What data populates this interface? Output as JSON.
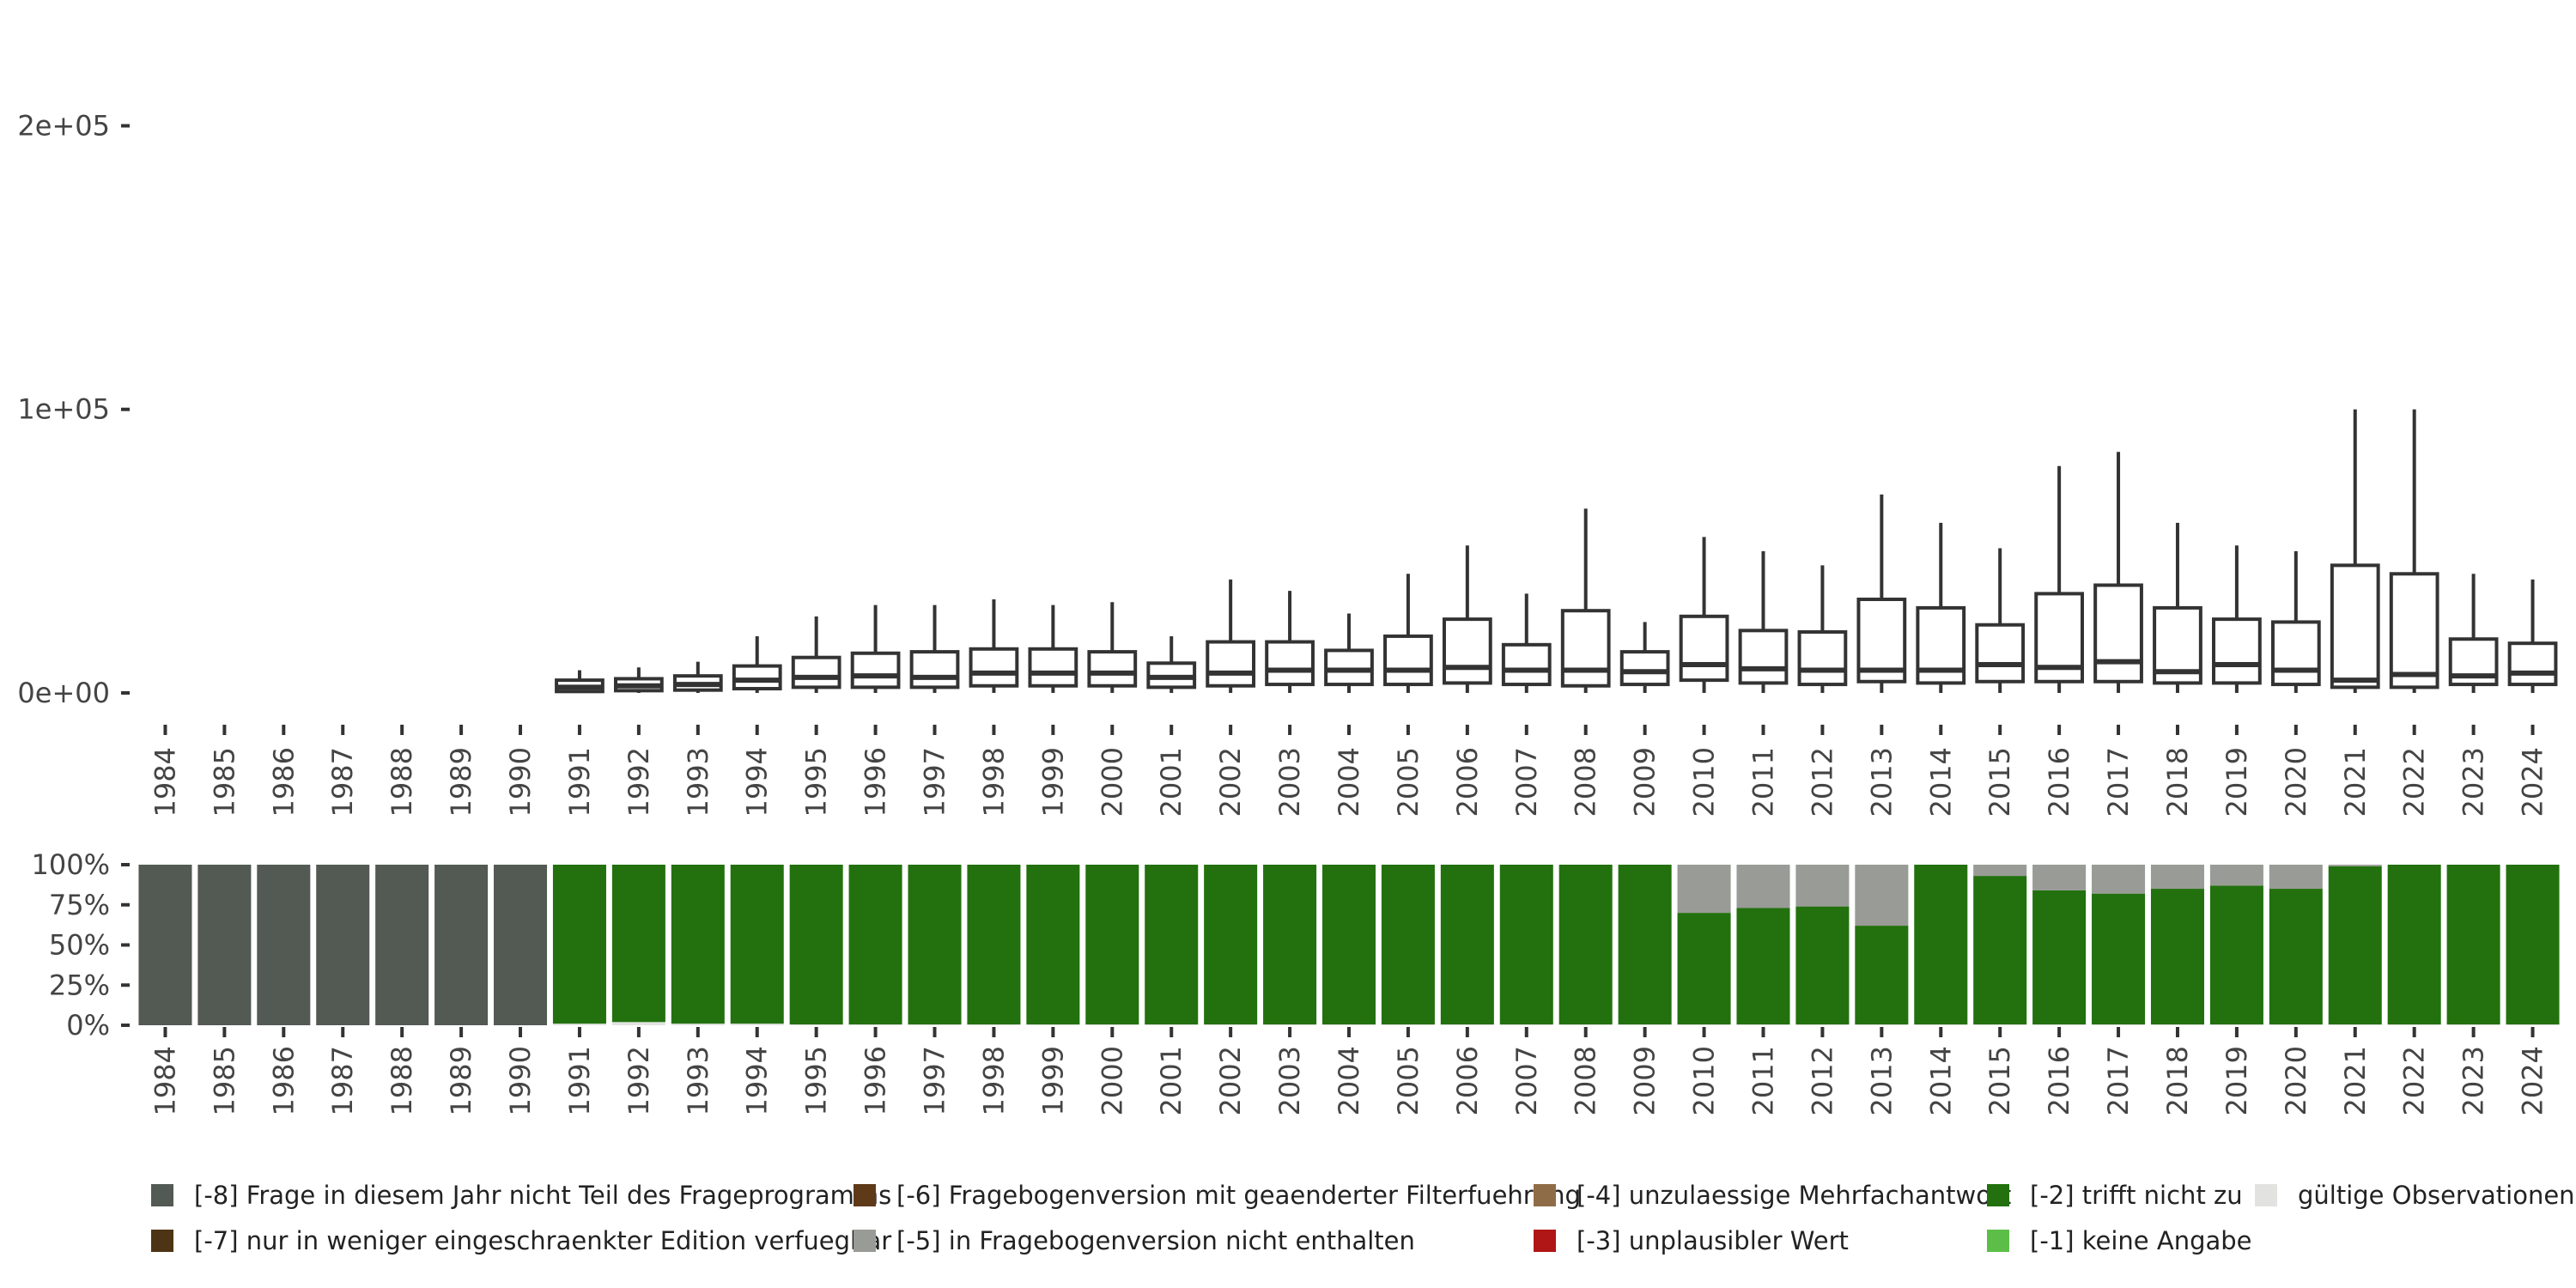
{
  "chart_data": [
    {
      "type": "boxplot",
      "title": "",
      "xlabel": "",
      "ylabel": "",
      "ylim": [
        -10000,
        205000
      ],
      "y_ticks": [
        {
          "value": 0,
          "label": "0e+00"
        },
        {
          "value": 100000,
          "label": "1e+05"
        },
        {
          "value": 200000,
          "label": "2e+05"
        }
      ],
      "categories": [
        "1984",
        "1985",
        "1986",
        "1987",
        "1988",
        "1989",
        "1990",
        "1991",
        "1992",
        "1993",
        "1994",
        "1995",
        "1996",
        "1997",
        "1998",
        "1999",
        "2000",
        "2001",
        "2002",
        "2003",
        "2004",
        "2005",
        "2006",
        "2007",
        "2008",
        "2009",
        "2010",
        "2011",
        "2012",
        "2013",
        "2014",
        "2015",
        "2016",
        "2017",
        "2018",
        "2019",
        "2020",
        "2021",
        "2022",
        "2023",
        "2024"
      ],
      "boxes": [
        null,
        null,
        null,
        null,
        null,
        null,
        null,
        {
          "min": 0,
          "q1": 500,
          "median": 2000,
          "q3": 4500,
          "max": 8000
        },
        {
          "min": 0,
          "q1": 800,
          "median": 2500,
          "q3": 5000,
          "max": 9000
        },
        {
          "min": 0,
          "q1": 1000,
          "median": 3000,
          "q3": 6000,
          "max": 11000
        },
        {
          "min": 0,
          "q1": 1500,
          "median": 4500,
          "q3": 9500,
          "max": 20000
        },
        {
          "min": 0,
          "q1": 2000,
          "median": 5500,
          "q3": 12500,
          "max": 27000
        },
        {
          "min": 0,
          "q1": 2000,
          "median": 6000,
          "q3": 14000,
          "max": 31000
        },
        {
          "min": 0,
          "q1": 2000,
          "median": 5500,
          "q3": 14500,
          "max": 31000
        },
        {
          "min": 0,
          "q1": 2500,
          "median": 7000,
          "q3": 15500,
          "max": 33000
        },
        {
          "min": 0,
          "q1": 2500,
          "median": 7000,
          "q3": 15500,
          "max": 31000
        },
        {
          "min": 0,
          "q1": 2500,
          "median": 7000,
          "q3": 14500,
          "max": 32000
        },
        {
          "min": 0,
          "q1": 2000,
          "median": 5500,
          "q3": 10500,
          "max": 20000
        },
        {
          "min": 0,
          "q1": 2500,
          "median": 7000,
          "q3": 18000,
          "max": 40000
        },
        {
          "min": 0,
          "q1": 3000,
          "median": 8000,
          "q3": 18000,
          "max": 36000
        },
        {
          "min": 0,
          "q1": 3000,
          "median": 8000,
          "q3": 15000,
          "max": 28000
        },
        {
          "min": 0,
          "q1": 3000,
          "median": 8000,
          "q3": 20000,
          "max": 42000
        },
        {
          "min": 0,
          "q1": 3500,
          "median": 9000,
          "q3": 26000,
          "max": 52000
        },
        {
          "min": 0,
          "q1": 3000,
          "median": 8000,
          "q3": 17000,
          "max": 35000
        },
        {
          "min": 0,
          "q1": 2500,
          "median": 8000,
          "q3": 29000,
          "max": 65000
        },
        {
          "min": 0,
          "q1": 3000,
          "median": 7500,
          "q3": 14500,
          "max": 25000
        },
        {
          "min": 0,
          "q1": 4500,
          "median": 10000,
          "q3": 27000,
          "max": 55000
        },
        {
          "min": 0,
          "q1": 3500,
          "median": 8500,
          "q3": 22000,
          "max": 50000
        },
        {
          "min": 0,
          "q1": 3000,
          "median": 8000,
          "q3": 21500,
          "max": 45000
        },
        {
          "min": 0,
          "q1": 4000,
          "median": 8000,
          "q3": 33000,
          "max": 70000
        },
        {
          "min": 0,
          "q1": 3500,
          "median": 8000,
          "q3": 30000,
          "max": 60000
        },
        {
          "min": 0,
          "q1": 4000,
          "median": 10000,
          "q3": 24000,
          "max": 51000
        },
        {
          "min": 0,
          "q1": 4000,
          "median": 9000,
          "q3": 35000,
          "max": 80000
        },
        {
          "min": 0,
          "q1": 4000,
          "median": 11000,
          "q3": 38000,
          "max": 85000
        },
        {
          "min": 0,
          "q1": 3500,
          "median": 7500,
          "q3": 30000,
          "max": 60000
        },
        {
          "min": 0,
          "q1": 3500,
          "median": 10000,
          "q3": 26000,
          "max": 52000
        },
        {
          "min": 0,
          "q1": 3000,
          "median": 8000,
          "q3": 25000,
          "max": 50000
        },
        {
          "min": 0,
          "q1": 2000,
          "median": 4500,
          "q3": 45000,
          "max": 100000
        },
        {
          "min": 0,
          "q1": 2000,
          "median": 6500,
          "q3": 42000,
          "max": 100000
        },
        {
          "min": 0,
          "q1": 3000,
          "median": 6000,
          "q3": 19000,
          "max": 42000
        },
        {
          "min": 0,
          "q1": 3000,
          "median": 7000,
          "q3": 17500,
          "max": 40000
        }
      ]
    },
    {
      "type": "stacked_bar",
      "orientation": "vertical",
      "title": "",
      "xlabel": "",
      "ylabel": "",
      "ylim": [
        0,
        1
      ],
      "y_ticks": [
        {
          "value": 0,
          "label": "0%"
        },
        {
          "value": 0.25,
          "label": "25%"
        },
        {
          "value": 0.5,
          "label": "50%"
        },
        {
          "value": 0.75,
          "label": "75%"
        },
        {
          "value": 1,
          "label": "100%"
        }
      ],
      "categories": [
        "1984",
        "1985",
        "1986",
        "1987",
        "1988",
        "1989",
        "1990",
        "1991",
        "1992",
        "1993",
        "1994",
        "1995",
        "1996",
        "1997",
        "1998",
        "1999",
        "2000",
        "2001",
        "2002",
        "2003",
        "2004",
        "2005",
        "2006",
        "2007",
        "2008",
        "2009",
        "2010",
        "2011",
        "2012",
        "2013",
        "2014",
        "2015",
        "2016",
        "2017",
        "2018",
        "2019",
        "2020",
        "2021",
        "2022",
        "2023",
        "2024"
      ],
      "series": [
        {
          "name": "gültige Observationen",
          "color": "#e2e3e0",
          "values": [
            0,
            0,
            0,
            0,
            0,
            0,
            0,
            0.01,
            0.02,
            0.01,
            0.01,
            0.005,
            0.005,
            0.005,
            0.005,
            0.005,
            0.005,
            0.005,
            0.005,
            0.005,
            0.005,
            0.005,
            0.005,
            0.005,
            0.005,
            0.005,
            0.005,
            0.005,
            0.005,
            0.005,
            0.005,
            0.005,
            0.005,
            0.005,
            0.005,
            0.005,
            0.005,
            0.005,
            0.005,
            0.005,
            0.005
          ]
        },
        {
          "name": "[-2] trifft nicht zu",
          "color": "#22710e",
          "values": [
            0,
            0,
            0,
            0,
            0,
            0,
            0,
            0.99,
            0.98,
            0.99,
            0.99,
            0.995,
            0.995,
            0.995,
            0.995,
            0.995,
            0.995,
            0.995,
            0.995,
            0.995,
            0.995,
            0.995,
            0.995,
            0.995,
            0.995,
            0.995,
            0.695,
            0.725,
            0.735,
            0.615,
            0.995,
            0.925,
            0.835,
            0.815,
            0.845,
            0.865,
            0.845,
            0.985,
            0.995,
            0.995,
            0.995
          ]
        },
        {
          "name": "[-5] in Fragebogenversion nicht enthalten",
          "color": "#999b96",
          "values": [
            0,
            0,
            0,
            0,
            0,
            0,
            0,
            0,
            0,
            0,
            0,
            0,
            0,
            0,
            0,
            0,
            0,
            0,
            0,
            0,
            0,
            0,
            0,
            0,
            0,
            0,
            0.3,
            0.27,
            0.26,
            0.38,
            0,
            0.07,
            0.16,
            0.18,
            0.15,
            0.13,
            0.15,
            0.01,
            0,
            0,
            0
          ]
        },
        {
          "name": "[-8] Frage in diesem Jahr nicht Teil des Frageprogramms",
          "color": "#535953",
          "values": [
            1,
            1,
            1,
            1,
            1,
            1,
            1,
            0,
            0,
            0,
            0,
            0,
            0,
            0,
            0,
            0,
            0,
            0,
            0,
            0,
            0,
            0,
            0,
            0,
            0,
            0,
            0,
            0,
            0,
            0,
            0,
            0,
            0,
            0,
            0,
            0,
            0,
            0,
            0,
            0,
            0
          ]
        }
      ]
    }
  ],
  "legend": [
    {
      "label": "[-8] Frage in diesem Jahr nicht Teil des Frageprogramms",
      "color": "#535953"
    },
    {
      "label": "[-7] nur in weniger eingeschraenkter Edition verfuegbar",
      "color": "#4d3414"
    },
    {
      "label": "[-6] Fragebogenversion mit geaenderter Filterfuehrung",
      "color": "#5e3a19"
    },
    {
      "label": "[-5] in Fragebogenversion nicht enthalten",
      "color": "#999b96"
    },
    {
      "label": "[-4] unzulaessige Mehrfachantwort",
      "color": "#8f6c48"
    },
    {
      "label": "[-3] unplausibler Wert",
      "color": "#b01616"
    },
    {
      "label": "[-2] trifft nicht zu",
      "color": "#22710e"
    },
    {
      "label": "[-1] keine Angabe",
      "color": "#5cbe46"
    },
    {
      "label": "gültige Observationen",
      "color": "#e2e3e0"
    }
  ]
}
